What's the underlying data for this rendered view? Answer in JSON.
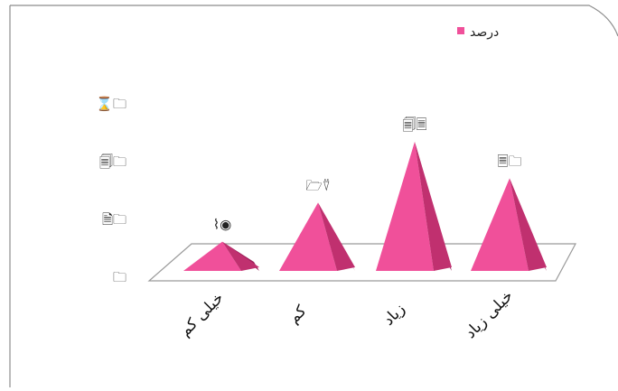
{
  "chart_data": {
    "type": "bar",
    "title": "",
    "xlabel": "",
    "ylabel": "",
    "categories": [
      "خیلی کم",
      "کم",
      "زیاد",
      "خیلی زیاد"
    ],
    "series": [
      {
        "name": "درصد",
        "color": "#f0509a",
        "values": [
          12,
          28,
          53,
          38
        ],
        "data_labels": [
          "⌇◉",
          "🗁⍢",
          "🗐🗏",
          "🗏🗀"
        ]
      }
    ],
    "y_tick_labels": [
      "🗀",
      "🗎🗀",
      "🗐🗀",
      "⌛🗀"
    ],
    "y_ticks": [
      0,
      20,
      40,
      60
    ],
    "ylim": [
      0,
      60
    ],
    "legend": {
      "position": "top-right"
    },
    "grid": false,
    "note": "Tick and data labels are rendered as symbol-font glyphs in the original."
  }
}
